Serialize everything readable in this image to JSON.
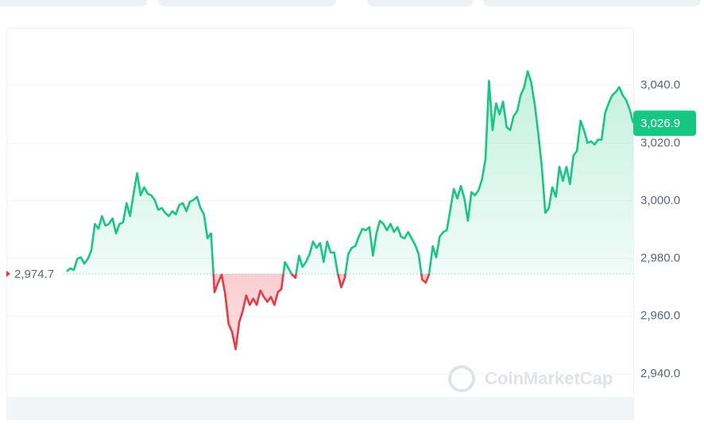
{
  "chart_data": {
    "type": "line",
    "watermark": "CoinMarketCap",
    "values": [
      2975.5,
      2976.6,
      2976.0,
      2979.9,
      2980.4,
      2978.2,
      2979.9,
      2982.9,
      2992.0,
      2990.3,
      2994.7,
      2991.4,
      2992.0,
      2993.9,
      2988.7,
      2992.0,
      2992.5,
      2999.2,
      2994.7,
      3002.5,
      3009.6,
      3001.9,
      3004.7,
      3002.5,
      3001.9,
      3000.3,
      2996.9,
      2997.5,
      2995.8,
      2994.7,
      2996.4,
      2995.3,
      2998.6,
      2999.2,
      2996.4,
      2999.7,
      3000.3,
      3001.4,
      2997.5,
      2995.3,
      2987.0,
      2988.7,
      2968.3,
      2971.6,
      2974.4,
      2967.8,
      2957.3,
      2954.5,
      2948.5,
      2957.9,
      2961.7,
      2967.2,
      2963.9,
      2966.1,
      2963.9,
      2968.9,
      2966.7,
      2965.0,
      2966.7,
      2963.9,
      2968.3,
      2969.4,
      2978.8,
      2976.6,
      2974.4,
      2973.3,
      2981.0,
      2977.1,
      2978.8,
      2981.5,
      2985.9,
      2983.7,
      2985.4,
      2978.8,
      2985.9,
      2982.1,
      2982.1,
      2974.9,
      2970.0,
      2973.3,
      2981.5,
      2983.7,
      2984.3,
      2987.6,
      2990.3,
      2989.8,
      2990.9,
      2981.0,
      2988.7,
      2993.1,
      2992.0,
      2989.8,
      2992.0,
      2989.2,
      2990.9,
      2987.6,
      2987.0,
      2989.2,
      2987.0,
      2984.8,
      2981.5,
      2972.7,
      2971.6,
      2974.6,
      2984.3,
      2980.4,
      2987.6,
      2989.2,
      2989.8,
      2996.9,
      3004.1,
      3000.8,
      3005.2,
      3000.8,
      2993.1,
      3003.0,
      3001.9,
      3003.6,
      3007.4,
      3014.6,
      3041.6,
      3024.5,
      3033.8,
      3030.0,
      3034.4,
      3025.6,
      3024.5,
      3029.4,
      3031.1,
      3036.6,
      3039.4,
      3044.9,
      3041.0,
      3033.3,
      3023.4,
      3011.8,
      2995.8,
      2997.5,
      3004.7,
      3001.4,
      3011.8,
      3006.9,
      3011.8,
      3005.8,
      3015.7,
      3017.3,
      3027.8,
      3024.5,
      3020.1,
      3020.6,
      3019.5,
      3021.2,
      3021.2,
      3030.5,
      3033.8,
      3036.6,
      3037.7,
      3039.4,
      3036.6,
      3034.9,
      3031.6,
      3026.9
    ],
    "up_color": "#16c784",
    "down_color": "#ea3943",
    "baseline": {
      "value": 2974.7,
      "label": "2,974.7"
    },
    "current": {
      "value": 3026.9,
      "label": "3,026.9"
    },
    "ylim": [
      2924,
      3060
    ],
    "yticks": [
      {
        "value": 2940,
        "label": "2,940.0"
      },
      {
        "value": 2960,
        "label": "2,960.0"
      },
      {
        "value": 2980,
        "label": "2,980.0"
      },
      {
        "value": 3000,
        "label": "3,000.0"
      },
      {
        "value": 3020,
        "label": "3,020.0"
      },
      {
        "value": 3040,
        "label": "3,040.0"
      }
    ],
    "grid": true
  }
}
